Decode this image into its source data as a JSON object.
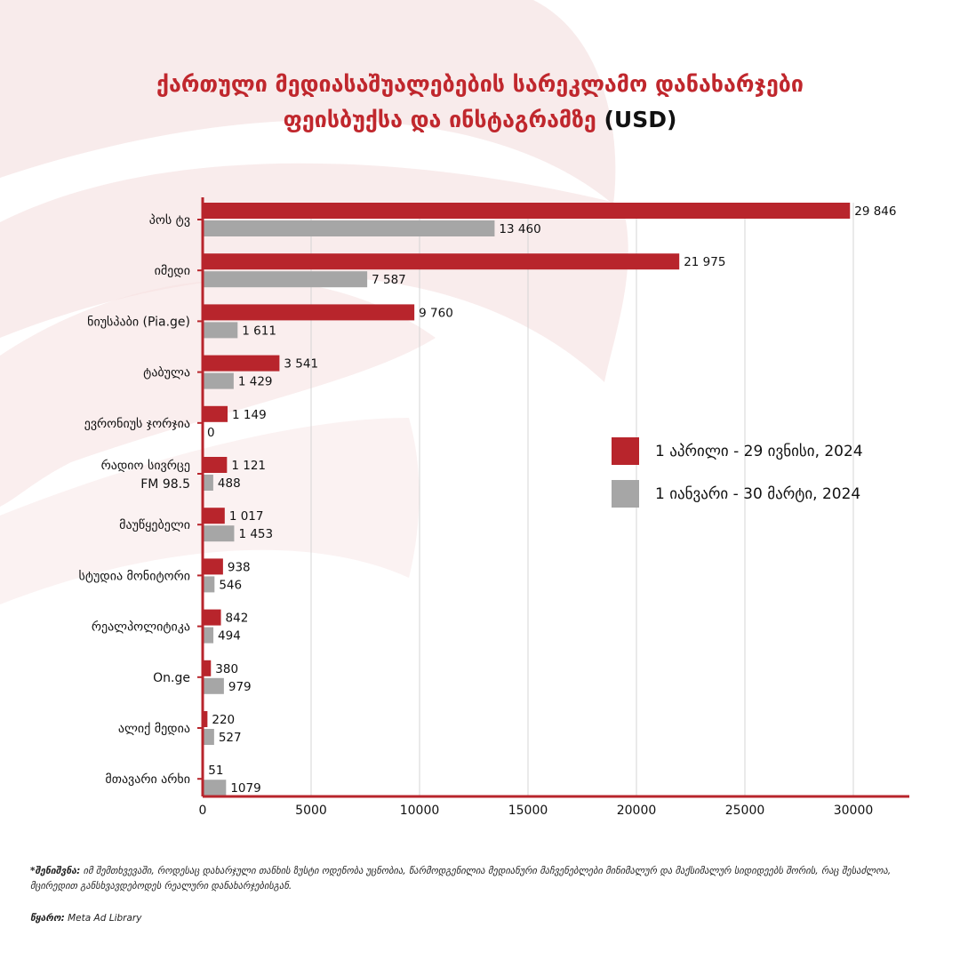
{
  "title": {
    "line1": "ქართული მედიასაშუალებების სარეკლამო დანახარჯები",
    "line2": "ფეისბუქსა და ინსტაგრამზე",
    "unit": "(USD)"
  },
  "colors": {
    "accent": "#b8252c",
    "secondary": "#a6a6a6",
    "grid": "#d4d4d4"
  },
  "legend": {
    "series1": "1 აპრილი - 29 ივნისი, 2024",
    "series2": "1 იანვარი - 30 მარტი, 2024"
  },
  "note": {
    "label": "*შენიშვნა:",
    "text": "იმ შემთხვევაში, როდესაც დახარჯული თანხის ზუსტი ოდენობა უცნობია, წარმოდგენილია მედიანური მაჩვენებლები მინიმალურ და მაქსიმალურ სიდიდეებს შორის, რაც შესაძლოა, მცირედით განსხვავდებოდეს რეალური დანახარჯებისგან."
  },
  "source": {
    "label": "წყარო:",
    "text": "Meta Ad Library"
  },
  "chart_data": {
    "type": "bar",
    "orientation": "horizontal",
    "categories": [
      [
        "პოს ტვ"
      ],
      [
        "იმედი"
      ],
      [
        "ნიუსპაბი (Pia.ge)"
      ],
      [
        "ტაბულა"
      ],
      [
        "ევრონიუს ჯორჯია"
      ],
      [
        "რადიო სივრცე",
        "FM 98.5"
      ],
      [
        "მაუწყებელი"
      ],
      [
        "სტუდია მონიტორი"
      ],
      [
        "რეალპოლიტიკა"
      ],
      [
        "On.ge"
      ],
      [
        "ალიქ მედია"
      ],
      [
        "მთავარი არხი"
      ]
    ],
    "series": [
      {
        "name": "1 აპრილი - 29 ივნისი, 2024",
        "values": [
          29846,
          21975,
          9760,
          3541,
          1149,
          1121,
          1017,
          938,
          842,
          380,
          220,
          51
        ],
        "labels": [
          "29 846",
          "21 975",
          "9 760",
          "3 541",
          "1 149",
          "1 121",
          "1 017",
          "938",
          "842",
          "380",
          "220",
          "51"
        ]
      },
      {
        "name": "1 იანვარი - 30 მარტი, 2024",
        "values": [
          13460,
          7587,
          1611,
          1429,
          0,
          488,
          1453,
          546,
          494,
          979,
          527,
          1079
        ],
        "labels": [
          "13 460",
          "7 587",
          "1 611",
          "1 429",
          "0",
          "488",
          "1 453",
          "546",
          "494",
          "979",
          "527",
          "1079"
        ]
      }
    ],
    "xticks": [
      0,
      5000,
      10000,
      15000,
      20000,
      25000,
      30000
    ],
    "xlim": [
      0,
      32500
    ],
    "grid": "vertical",
    "legend_position": "right"
  }
}
